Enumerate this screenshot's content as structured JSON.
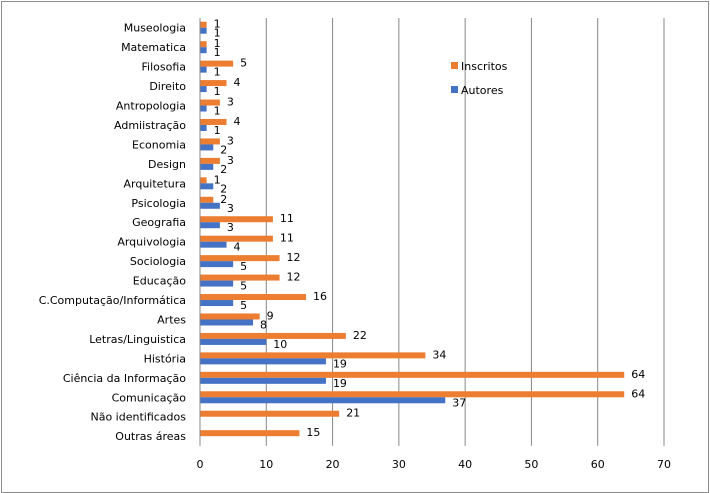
{
  "chart_data": {
    "type": "bar",
    "orientation": "horizontal",
    "categories": [
      "Museologia",
      "Matematica",
      "Filosofia",
      "Direito",
      "Antropologia",
      "Admiistração",
      "Economia",
      "Design",
      "Arquitetura",
      "Psicologia",
      "Geografia",
      "Arquivologia",
      "Sociologia",
      "Educação",
      "C.Computação/Informática",
      "Artes",
      "Letras/Linguistica",
      "História",
      "Ciência da Informação",
      "Comunicação",
      "Não identificados",
      "Outras áreas"
    ],
    "series": [
      {
        "name": "Inscritos",
        "color": "#ED7D31",
        "values": [
          1,
          1,
          5,
          4,
          3,
          4,
          3,
          3,
          1,
          2,
          11,
          11,
          12,
          12,
          16,
          9,
          22,
          34,
          64,
          64,
          21,
          15
        ]
      },
      {
        "name": "Autores",
        "color": "#4472C4",
        "values": [
          1,
          1,
          1,
          1,
          1,
          1,
          2,
          2,
          2,
          3,
          3,
          4,
          5,
          5,
          5,
          8,
          10,
          19,
          19,
          37,
          null,
          null
        ]
      }
    ],
    "xlim": [
      0,
      70
    ],
    "xticks": [
      0,
      10,
      20,
      30,
      40,
      50,
      60,
      70
    ],
    "grid": "vertical",
    "legend": "top-right"
  }
}
